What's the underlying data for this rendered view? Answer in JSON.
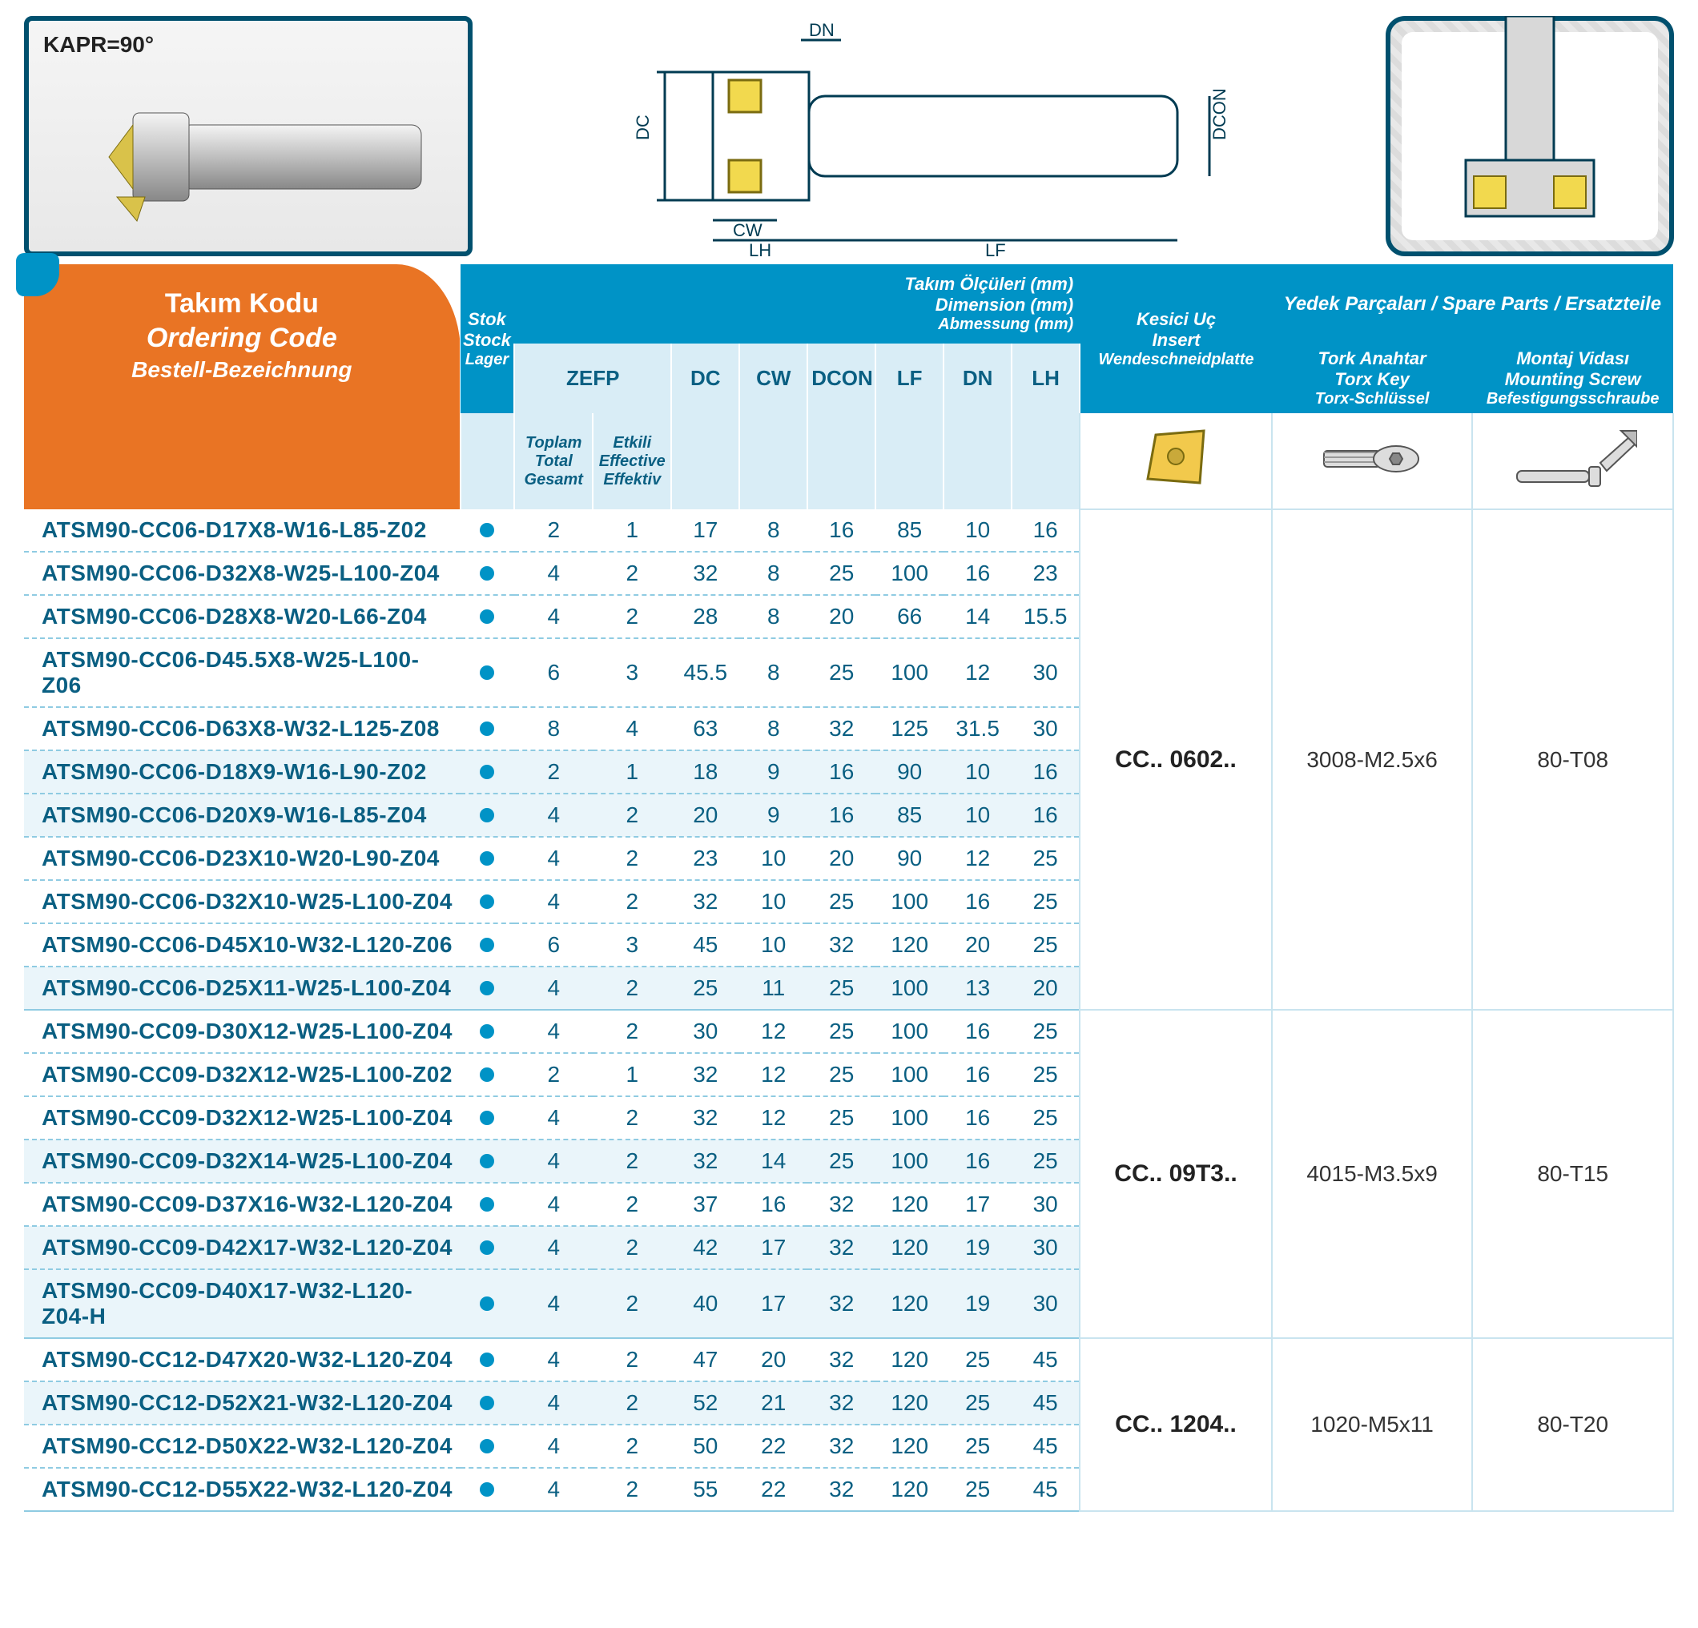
{
  "kapr_label": "KAPR=90°",
  "diagram_labels": {
    "DC": "DC",
    "CW": "CW",
    "LH": "LH",
    "LF": "LF",
    "DN": "DN",
    "DCON": "DCON"
  },
  "ordering_code": {
    "tk": "Takım Kodu",
    "en": "Ordering Code",
    "de": "Bestell-Bezeichnung"
  },
  "stock_hdr": {
    "tk": "Stok",
    "en": "Stock",
    "de": "Lager"
  },
  "dimensions_hdr": {
    "tk": "Takım Ölçüleri (mm)",
    "en": "Dimension (mm)",
    "de": "Abmessung (mm)"
  },
  "zefp_label": "ZEFP",
  "zefp_total": {
    "tk": "Toplam",
    "en": "Total",
    "de": "Gesamt"
  },
  "zefp_eff": {
    "tk": "Etkili",
    "en": "Effective",
    "de": "Effektiv"
  },
  "dim_cols": [
    "DC",
    "CW",
    "DCON",
    "LF",
    "DN",
    "LH"
  ],
  "insert_hdr": {
    "tk": "Kesici Uç",
    "en": "Insert",
    "de": "Wendeschneidplatte"
  },
  "spare_title": "Yedek Parçaları / Spare Parts / Ersatzteile",
  "torx_hdr": {
    "tk": "Tork Anahtar",
    "en": "Torx Key",
    "de": "Torx-Schlüssel"
  },
  "screw_hdr": {
    "tk": "Montaj Vidası",
    "en": "Mounting Screw",
    "de": "Befestigungsschraube"
  },
  "rows": [
    {
      "code": "ATSM90-CC06-D17X8-W16-L85-Z02",
      "z": [
        2,
        1
      ],
      "d": [
        17,
        8,
        16,
        85,
        10,
        16
      ],
      "alt": false
    },
    {
      "code": "ATSM90-CC06-D32X8-W25-L100-Z04",
      "z": [
        4,
        2
      ],
      "d": [
        32,
        8,
        25,
        100,
        16,
        23
      ],
      "alt": false
    },
    {
      "code": "ATSM90-CC06-D28X8-W20-L66-Z04",
      "z": [
        4,
        2
      ],
      "d": [
        28,
        8,
        20,
        66,
        14,
        15.5
      ],
      "alt": false
    },
    {
      "code": "ATSM90-CC06-D45.5X8-W25-L100-Z06",
      "z": [
        6,
        3
      ],
      "d": [
        45.5,
        8,
        25,
        100,
        12,
        30
      ],
      "alt": false
    },
    {
      "code": "ATSM90-CC06-D63X8-W32-L125-Z08",
      "z": [
        8,
        4
      ],
      "d": [
        63,
        8,
        32,
        125,
        31.5,
        30
      ],
      "alt": false
    },
    {
      "code": "ATSM90-CC06-D18X9-W16-L90-Z02",
      "z": [
        2,
        1
      ],
      "d": [
        18,
        9,
        16,
        90,
        10,
        16
      ],
      "alt": true
    },
    {
      "code": "ATSM90-CC06-D20X9-W16-L85-Z04",
      "z": [
        4,
        2
      ],
      "d": [
        20,
        9,
        16,
        85,
        10,
        16
      ],
      "alt": true
    },
    {
      "code": "ATSM90-CC06-D23X10-W20-L90-Z04",
      "z": [
        4,
        2
      ],
      "d": [
        23,
        10,
        20,
        90,
        12,
        25
      ],
      "alt": false
    },
    {
      "code": "ATSM90-CC06-D32X10-W25-L100-Z04",
      "z": [
        4,
        2
      ],
      "d": [
        32,
        10,
        25,
        100,
        16,
        25
      ],
      "alt": false
    },
    {
      "code": "ATSM90-CC06-D45X10-W32-L120-Z06",
      "z": [
        6,
        3
      ],
      "d": [
        45,
        10,
        32,
        120,
        20,
        25
      ],
      "alt": false
    },
    {
      "code": "ATSM90-CC06-D25X11-W25-L100-Z04",
      "z": [
        4,
        2
      ],
      "d": [
        25,
        11,
        25,
        100,
        13,
        20
      ],
      "alt": true
    },
    {
      "code": "ATSM90-CC09-D30X12-W25-L100-Z04",
      "z": [
        4,
        2
      ],
      "d": [
        30,
        12,
        25,
        100,
        16,
        25
      ],
      "alt": false
    },
    {
      "code": "ATSM90-CC09-D32X12-W25-L100-Z02",
      "z": [
        2,
        1
      ],
      "d": [
        32,
        12,
        25,
        100,
        16,
        25
      ],
      "alt": false
    },
    {
      "code": "ATSM90-CC09-D32X12-W25-L100-Z04",
      "z": [
        4,
        2
      ],
      "d": [
        32,
        12,
        25,
        100,
        16,
        25
      ],
      "alt": false
    },
    {
      "code": "ATSM90-CC09-D32X14-W25-L100-Z04",
      "z": [
        4,
        2
      ],
      "d": [
        32,
        14,
        25,
        100,
        16,
        25
      ],
      "alt": true
    },
    {
      "code": "ATSM90-CC09-D37X16-W32-L120-Z04",
      "z": [
        4,
        2
      ],
      "d": [
        37,
        16,
        32,
        120,
        17,
        30
      ],
      "alt": false
    },
    {
      "code": "ATSM90-CC09-D42X17-W32-L120-Z04",
      "z": [
        4,
        2
      ],
      "d": [
        42,
        17,
        32,
        120,
        19,
        30
      ],
      "alt": true
    },
    {
      "code": "ATSM90-CC09-D40X17-W32-L120-Z04-H",
      "z": [
        4,
        2
      ],
      "d": [
        40,
        17,
        32,
        120,
        19,
        30
      ],
      "alt": true
    },
    {
      "code": "ATSM90-CC12-D47X20-W32-L120-Z04",
      "z": [
        4,
        2
      ],
      "d": [
        47,
        20,
        32,
        120,
        25,
        45
      ],
      "alt": false
    },
    {
      "code": "ATSM90-CC12-D52X21-W32-L120-Z04",
      "z": [
        4,
        2
      ],
      "d": [
        52,
        21,
        32,
        120,
        25,
        45
      ],
      "alt": true
    },
    {
      "code": "ATSM90-CC12-D50X22-W32-L120-Z04",
      "z": [
        4,
        2
      ],
      "d": [
        50,
        22,
        32,
        120,
        25,
        45
      ],
      "alt": false
    },
    {
      "code": "ATSM90-CC12-D55X22-W32-L120-Z04",
      "z": [
        4,
        2
      ],
      "d": [
        55,
        22,
        32,
        120,
        25,
        45
      ],
      "alt": false
    }
  ],
  "groups": [
    {
      "span": 11,
      "insert": "CC.. 0602..",
      "torx": "3008-M2.5x6",
      "screw": "80-T08"
    },
    {
      "span": 7,
      "insert": "CC.. 09T3..",
      "torx": "4015-M3.5x9",
      "screw": "80-T15"
    },
    {
      "span": 4,
      "insert": "CC.. 1204..",
      "torx": "1020-M5x11",
      "screw": "80-T20"
    }
  ],
  "colors": {
    "orange": "#e97424",
    "blue": "#0093c6",
    "lightblue": "#d9edf6",
    "textblue": "#0a5f82",
    "dash": "#8fcbe2"
  }
}
